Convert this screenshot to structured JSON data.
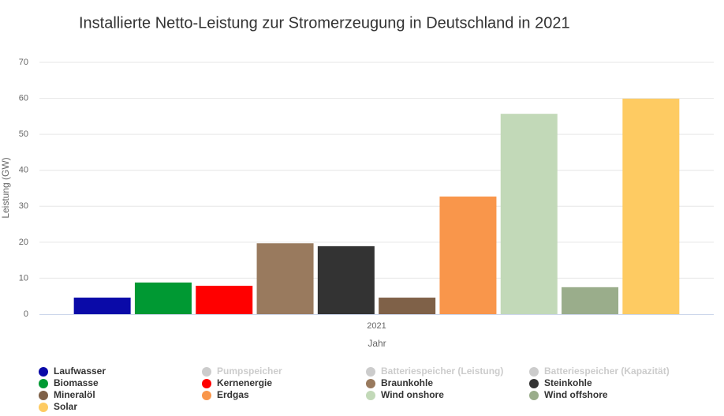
{
  "chart_data": {
    "type": "bar",
    "title": "Installierte Netto-Leistung zur Stromerzeugung in Deutschland in 2021",
    "x_label": "Jahr",
    "y_label": "Leistung (GW)",
    "categories": [
      "2021"
    ],
    "ylim": [
      0,
      70
    ],
    "yticks": [
      0,
      10,
      20,
      30,
      40,
      50,
      60,
      70
    ],
    "grid": true,
    "legend": "bottom",
    "series": [
      {
        "name": "Laufwasser",
        "color": "#0a0aa8",
        "values": [
          4.6
        ]
      },
      {
        "name": "Pumpspeicher",
        "color": "#cccccc",
        "visible": false,
        "values": [
          null
        ]
      },
      {
        "name": "Batteriespeicher (Leistung)",
        "color": "#cccccc",
        "visible": false,
        "values": [
          null
        ]
      },
      {
        "name": "Batteriespeicher (Kapazität)",
        "color": "#cccccc",
        "visible": false,
        "values": [
          null
        ]
      },
      {
        "name": "Biomasse",
        "color": "#009933",
        "values": [
          8.8
        ]
      },
      {
        "name": "Kernenergie",
        "color": "#ff0000",
        "values": [
          7.9
        ]
      },
      {
        "name": "Braunkohle",
        "color": "#997a5e",
        "values": [
          19.7
        ]
      },
      {
        "name": "Steinkohle",
        "color": "#333333",
        "values": [
          18.9
        ]
      },
      {
        "name": "Mineralöl",
        "color": "#7f6148",
        "values": [
          4.6
        ]
      },
      {
        "name": "Erdgas",
        "color": "#f9964b",
        "values": [
          32.7
        ]
      },
      {
        "name": "Wind onshore",
        "color": "#c2d9b8",
        "values": [
          55.7
        ]
      },
      {
        "name": "Wind offshore",
        "color": "#9aad8b",
        "values": [
          7.5
        ]
      },
      {
        "name": "Solar",
        "color": "#fecb62",
        "values": [
          59.9
        ]
      }
    ]
  }
}
